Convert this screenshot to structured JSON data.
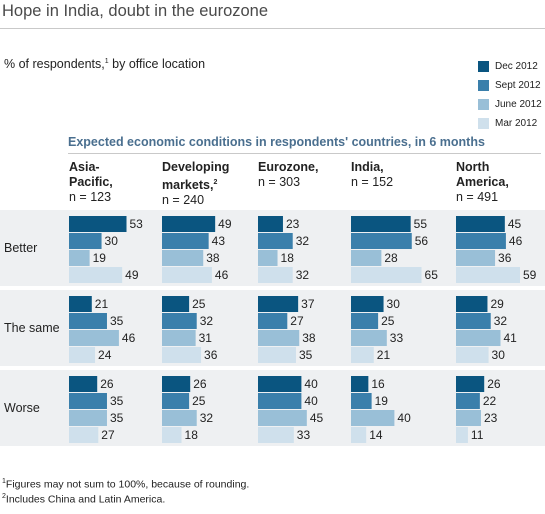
{
  "title": "Hope in India, doubt in the eurozone",
  "subtitle": "% of respondents,",
  "subtitle_note_mark": "1",
  "subtitle_tail": " by office location",
  "chart_data": {
    "type": "bar",
    "title": "Expected economic conditions in respondents' countries, in 6 months",
    "series": [
      {
        "name": "Dec 2012",
        "color": "#0a5580"
      },
      {
        "name": "Sept 2012",
        "color": "#3a7fab"
      },
      {
        "name": "June 2012",
        "color": "#99bfd7"
      },
      {
        "name": "Mar 2012",
        "color": "#cfe0ec"
      }
    ],
    "rows": [
      "Better",
      "The same",
      "Worse"
    ],
    "groups": [
      {
        "name": "Asia-Pacific,",
        "name_lines": [
          "Asia-",
          "Pacific,"
        ],
        "note_mark": "",
        "n": "n = 123",
        "values": [
          [
            53,
            30,
            19,
            49
          ],
          [
            21,
            35,
            46,
            24
          ],
          [
            26,
            35,
            35,
            27
          ]
        ]
      },
      {
        "name": "Developing markets,",
        "name_lines": [
          "Developing",
          "markets,"
        ],
        "note_mark": "2",
        "n": "n = 240",
        "values": [
          [
            49,
            43,
            38,
            46
          ],
          [
            25,
            32,
            31,
            36
          ],
          [
            26,
            25,
            32,
            18
          ]
        ]
      },
      {
        "name": "Eurozone,",
        "name_lines": [
          "Eurozone,"
        ],
        "note_mark": "",
        "n": "n = 303",
        "values": [
          [
            23,
            32,
            18,
            32
          ],
          [
            37,
            27,
            38,
            35
          ],
          [
            40,
            40,
            45,
            33
          ]
        ]
      },
      {
        "name": "India,",
        "name_lines": [
          "India,"
        ],
        "note_mark": "",
        "n": "n = 152",
        "values": [
          [
            55,
            56,
            28,
            65
          ],
          [
            30,
            25,
            33,
            21
          ],
          [
            16,
            19,
            40,
            14
          ]
        ]
      },
      {
        "name": "North America,",
        "name_lines": [
          "North",
          "America,"
        ],
        "note_mark": "",
        "n": "n = 491",
        "values": [
          [
            45,
            46,
            36,
            59
          ],
          [
            29,
            32,
            41,
            30
          ],
          [
            26,
            22,
            23,
            11
          ]
        ]
      }
    ],
    "band_color": "#eef0f2"
  },
  "footnotes": [
    {
      "mark": "1",
      "text": "Figures may not sum to 100%, because of rounding."
    },
    {
      "mark": "2",
      "text": "Includes China and Latin America."
    }
  ]
}
